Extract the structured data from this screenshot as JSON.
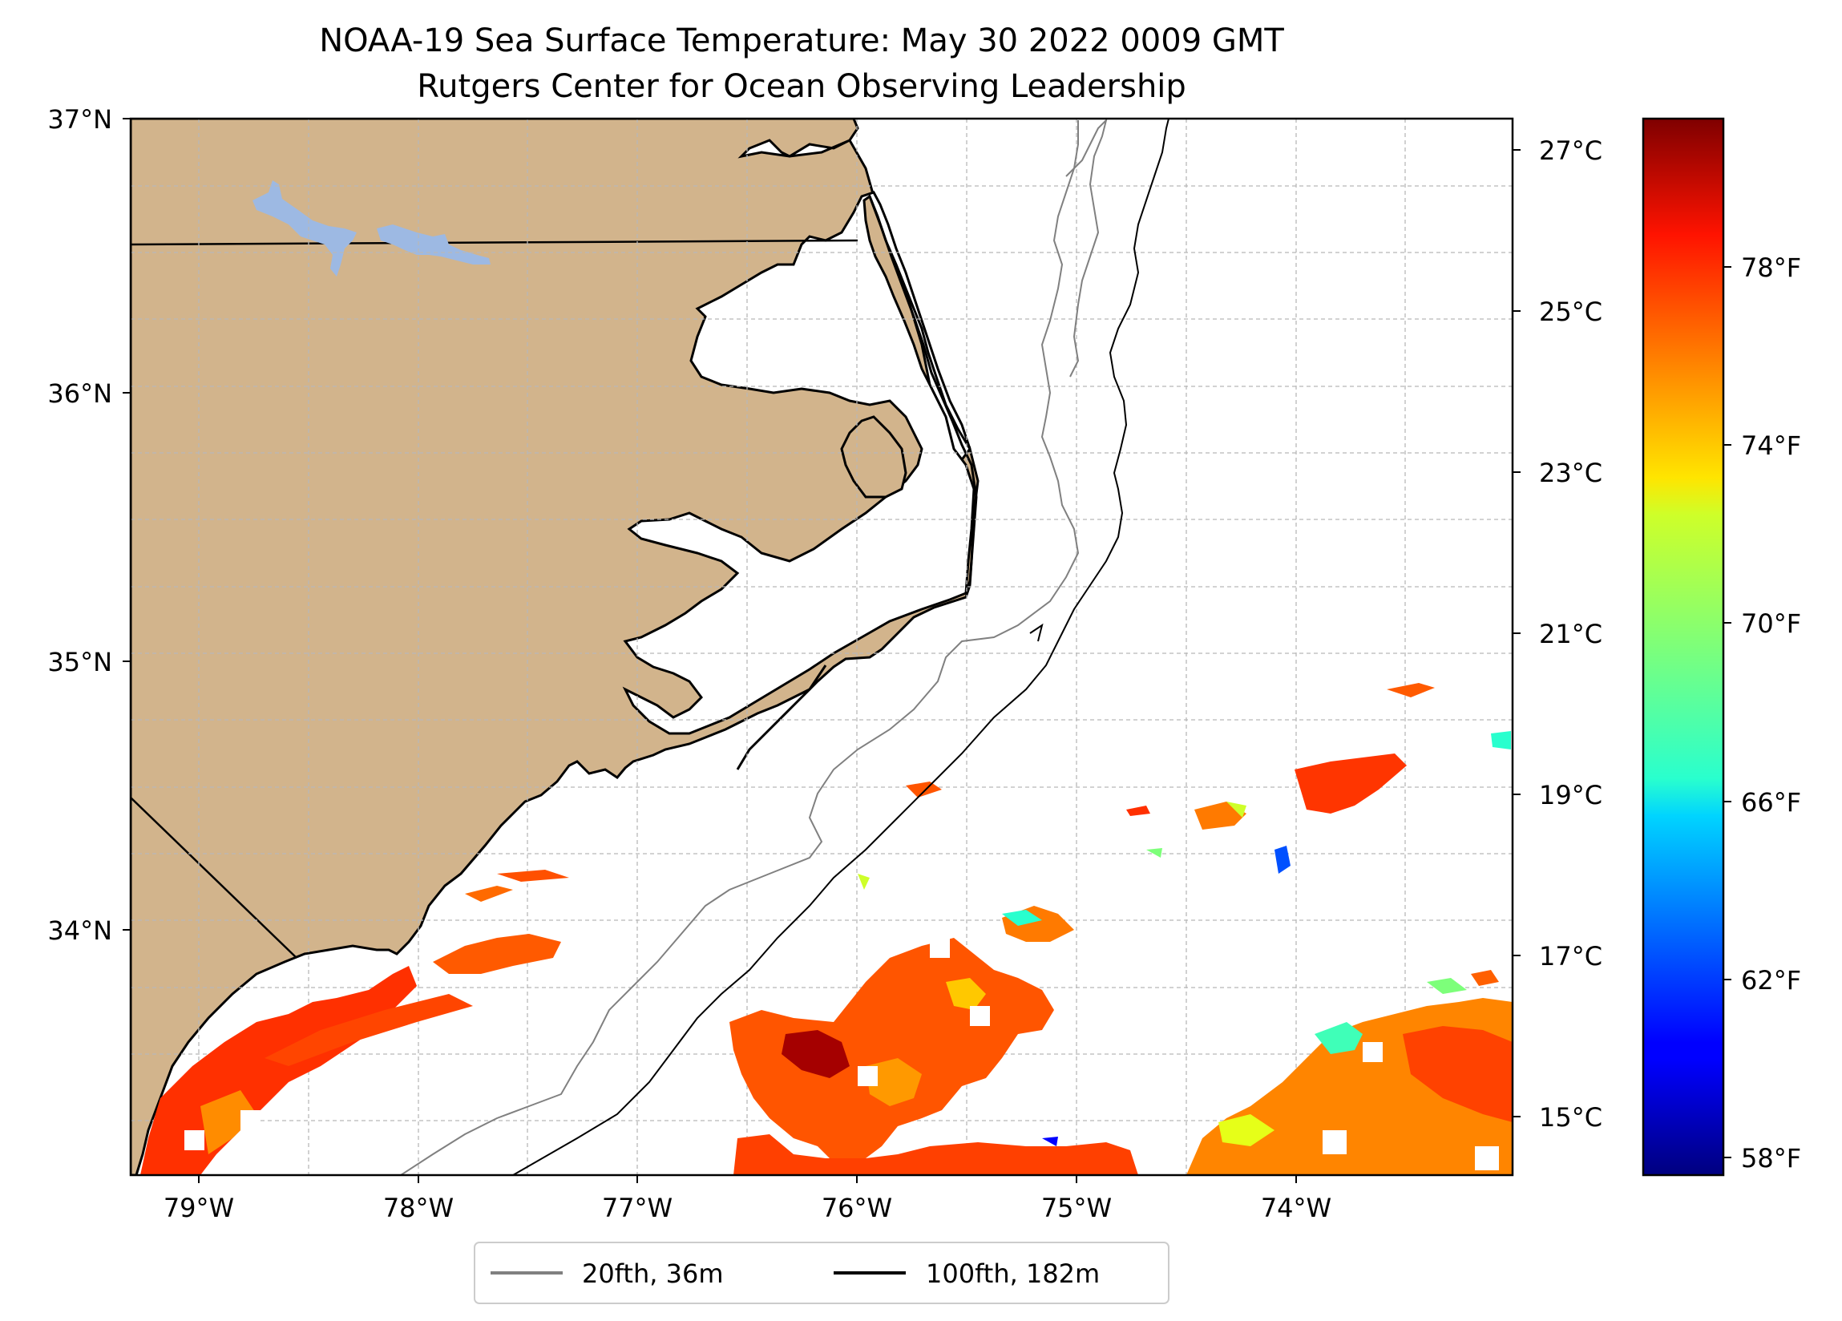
{
  "title": {
    "line1": "NOAA-19 Sea Surface Temperature: May 30 2022 0009 GMT",
    "line2": "Rutgers Center for Ocean Observing Leadership"
  },
  "map": {
    "lon_range": [
      -79.3,
      -73.05
    ],
    "lat_range": [
      33.05,
      37.0
    ],
    "lon_ticks": [
      "79°W",
      "78°W",
      "77°W",
      "76°W",
      "75°W",
      "74°W"
    ],
    "lat_ticks": [
      "37°N",
      "36°N",
      "35°N",
      "34°N"
    ],
    "land_color": "#D2B48C",
    "lake_color": "#9DB9E3",
    "ocean_color": "#FFFFFF",
    "gridlines": true
  },
  "colorbar": {
    "colormap": "jet",
    "celsius_ticks": [
      "27°C",
      "25°C",
      "23°C",
      "21°C",
      "19°C",
      "17°C",
      "15°C"
    ],
    "fahrenheit_ticks": [
      "78°F",
      "74°F",
      "70°F",
      "66°F",
      "62°F",
      "58°F"
    ],
    "range_f": [
      57.6,
      81.4
    ]
  },
  "legend": {
    "placement": "bottom-center",
    "items": [
      {
        "label": "20fth, 36m",
        "color": "#808080"
      },
      {
        "label": "100fth, 182m",
        "color": "#000000"
      }
    ]
  }
}
